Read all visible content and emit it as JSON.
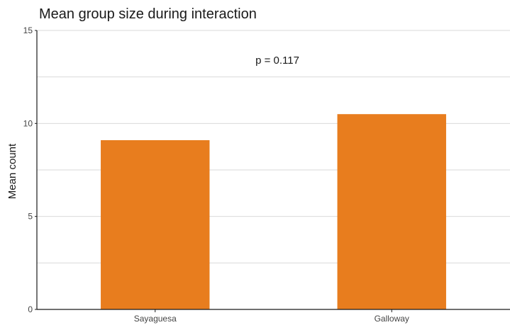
{
  "chart_data": {
    "type": "bar",
    "title": "Mean group size during interaction",
    "xlabel": "",
    "ylabel": "Mean count",
    "categories": [
      "Sayaguesa",
      "Galloway"
    ],
    "values": [
      9.1,
      10.5
    ],
    "ylim": [
      0,
      15
    ],
    "yticks": [
      0,
      5,
      10,
      15
    ],
    "grid": true,
    "bar_color": "#E87D1E",
    "annotation": "p = 0.117"
  }
}
